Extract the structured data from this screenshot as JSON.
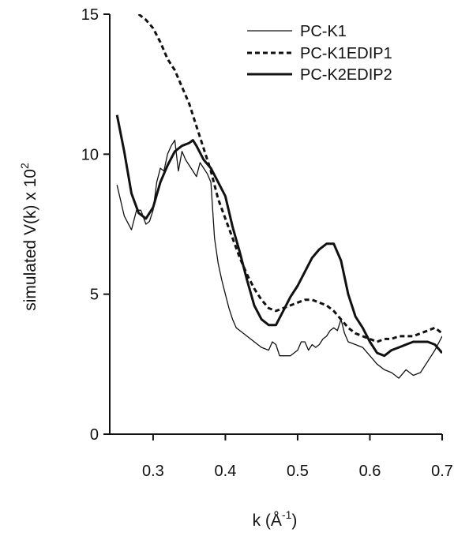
{
  "chart_data": {
    "type": "line",
    "title": "",
    "xlabel": {
      "base": "k (Å",
      "sup": "-1",
      "close": ")"
    },
    "ylabel": {
      "base": "simulated V(k) x 10",
      "sup": "2"
    },
    "xlim": [
      0.24,
      0.7
    ],
    "ylim": [
      0,
      15
    ],
    "xticks": [
      0.3,
      0.4,
      0.5,
      0.6,
      0.7
    ],
    "xtick_labels": [
      "0.3",
      "0.4",
      "0.5",
      "0.6",
      "0.7"
    ],
    "yticks": [
      0,
      5,
      10,
      15
    ],
    "ytick_labels": [
      "0",
      "5",
      "10",
      "15"
    ],
    "grid": false,
    "legend_position": "top-right",
    "series": [
      {
        "name": "PC-K1",
        "style": "thin",
        "x": [
          0.25,
          0.26,
          0.27,
          0.277,
          0.283,
          0.29,
          0.295,
          0.3,
          0.305,
          0.31,
          0.315,
          0.32,
          0.325,
          0.33,
          0.335,
          0.34,
          0.345,
          0.35,
          0.355,
          0.36,
          0.365,
          0.37,
          0.375,
          0.38,
          0.385,
          0.39,
          0.395,
          0.4,
          0.405,
          0.41,
          0.415,
          0.42,
          0.43,
          0.44,
          0.45,
          0.46,
          0.465,
          0.47,
          0.475,
          0.48,
          0.485,
          0.49,
          0.495,
          0.5,
          0.505,
          0.51,
          0.515,
          0.52,
          0.525,
          0.53,
          0.535,
          0.54,
          0.545,
          0.55,
          0.555,
          0.56,
          0.565,
          0.57,
          0.58,
          0.59,
          0.6,
          0.61,
          0.62,
          0.63,
          0.635,
          0.64,
          0.65,
          0.66,
          0.67,
          0.68,
          0.69,
          0.7
        ],
        "y": [
          8.9,
          7.8,
          7.3,
          8.0,
          8.0,
          7.5,
          7.6,
          8.0,
          9.0,
          9.5,
          9.4,
          10.0,
          10.3,
          10.5,
          9.4,
          10.1,
          9.8,
          9.6,
          9.4,
          9.2,
          9.7,
          9.5,
          9.3,
          9.0,
          7.0,
          6.1,
          5.5,
          5.0,
          4.5,
          4.1,
          3.8,
          3.7,
          3.5,
          3.3,
          3.1,
          3.0,
          3.3,
          3.2,
          2.8,
          2.8,
          2.8,
          2.8,
          2.9,
          3.0,
          3.3,
          3.3,
          3.0,
          3.2,
          3.1,
          3.2,
          3.4,
          3.5,
          3.7,
          3.8,
          3.7,
          4.1,
          3.6,
          3.3,
          3.2,
          3.1,
          2.8,
          2.5,
          2.3,
          2.2,
          2.1,
          2.0,
          2.3,
          2.1,
          2.2,
          2.6,
          3.0,
          3.5
        ]
      },
      {
        "name": "PC-K1EDIP1",
        "style": "dashed",
        "x": [
          0.28,
          0.29,
          0.3,
          0.31,
          0.32,
          0.33,
          0.34,
          0.35,
          0.36,
          0.37,
          0.38,
          0.39,
          0.4,
          0.41,
          0.42,
          0.43,
          0.44,
          0.45,
          0.46,
          0.47,
          0.48,
          0.49,
          0.5,
          0.51,
          0.52,
          0.53,
          0.54,
          0.55,
          0.56,
          0.57,
          0.58,
          0.59,
          0.6,
          0.61,
          0.62,
          0.63,
          0.64,
          0.65,
          0.66,
          0.67,
          0.68,
          0.69,
          0.7
        ],
        "y": [
          15.0,
          14.8,
          14.5,
          14.0,
          13.4,
          13.0,
          12.4,
          11.8,
          11.0,
          10.2,
          9.4,
          8.4,
          7.7,
          7.0,
          6.3,
          5.7,
          5.2,
          4.8,
          4.5,
          4.4,
          4.5,
          4.6,
          4.7,
          4.8,
          4.8,
          4.7,
          4.6,
          4.4,
          4.1,
          3.8,
          3.6,
          3.5,
          3.4,
          3.3,
          3.4,
          3.4,
          3.5,
          3.5,
          3.5,
          3.6,
          3.7,
          3.8,
          3.6
        ]
      },
      {
        "name": "PC-K2EDIP2",
        "style": "thick",
        "x": [
          0.25,
          0.26,
          0.27,
          0.28,
          0.29,
          0.3,
          0.31,
          0.32,
          0.33,
          0.34,
          0.35,
          0.355,
          0.36,
          0.37,
          0.38,
          0.39,
          0.4,
          0.41,
          0.42,
          0.43,
          0.44,
          0.45,
          0.46,
          0.47,
          0.48,
          0.49,
          0.5,
          0.51,
          0.52,
          0.53,
          0.54,
          0.55,
          0.56,
          0.57,
          0.58,
          0.59,
          0.6,
          0.61,
          0.62,
          0.63,
          0.64,
          0.65,
          0.66,
          0.67,
          0.68,
          0.69,
          0.7
        ],
        "y": [
          11.4,
          10.1,
          8.6,
          7.9,
          7.7,
          8.1,
          9.0,
          9.6,
          10.1,
          10.3,
          10.4,
          10.5,
          10.3,
          9.8,
          9.5,
          9.0,
          8.5,
          7.4,
          6.5,
          5.5,
          4.6,
          4.1,
          3.9,
          3.9,
          4.4,
          4.9,
          5.3,
          5.8,
          6.3,
          6.6,
          6.8,
          6.8,
          6.2,
          5.0,
          4.2,
          3.8,
          3.3,
          2.9,
          2.8,
          3.0,
          3.1,
          3.2,
          3.3,
          3.3,
          3.3,
          3.2,
          2.9
        ]
      }
    ]
  }
}
